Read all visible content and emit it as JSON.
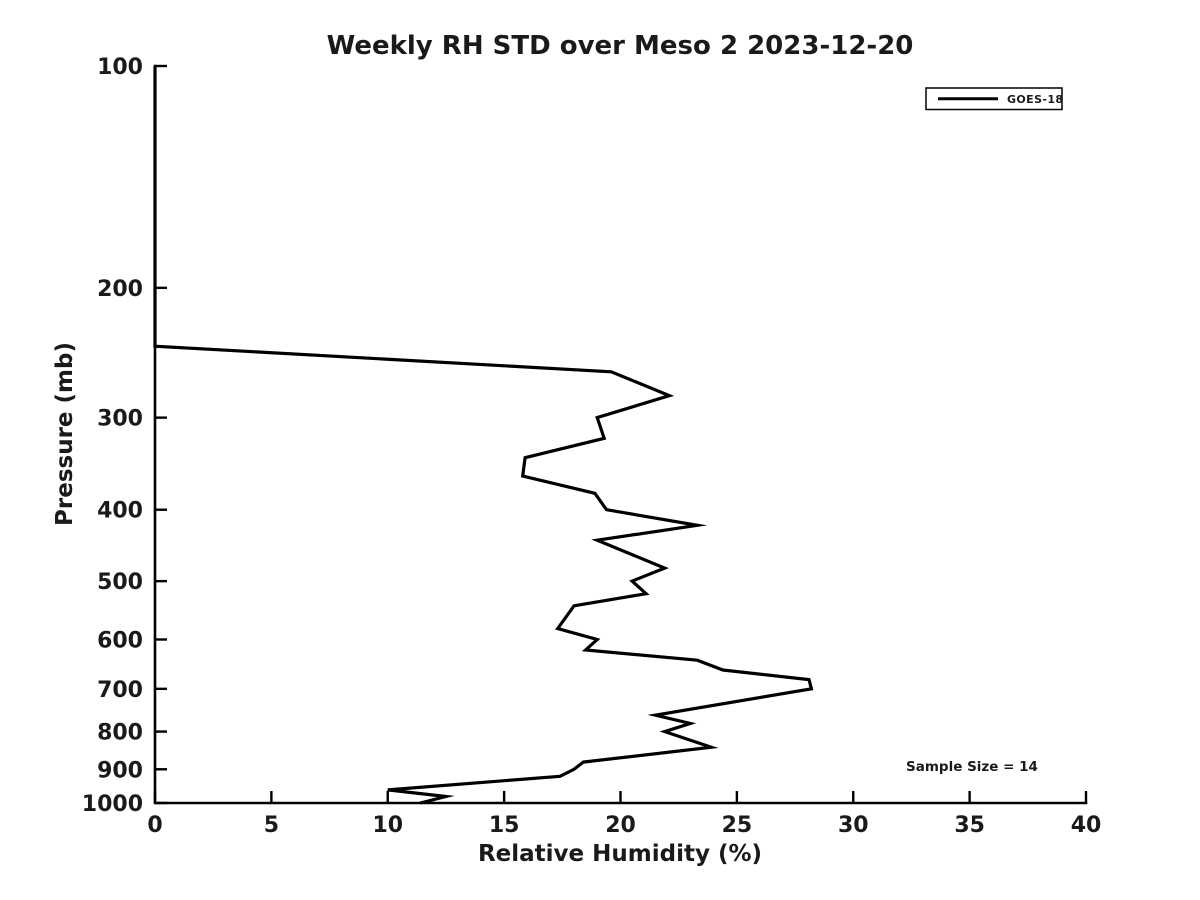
{
  "figure": {
    "background": "#ffffff",
    "foreground": "#000000"
  },
  "chart_data": {
    "type": "line",
    "title": "Weekly RH STD over Meso 2 2023-12-20",
    "xlabel": "Relative Humidity (%)",
    "ylabel": "Pressure (mb)",
    "xlim": [
      0,
      40
    ],
    "ylim": [
      100,
      1000
    ],
    "y_scale": "log",
    "y_axis_direction": "inverted (100 mb at top, 1000 mb at bottom)",
    "x_ticks": [
      0,
      5,
      10,
      15,
      20,
      25,
      30,
      35,
      40
    ],
    "y_ticks": [
      100,
      200,
      300,
      400,
      500,
      600,
      700,
      800,
      900,
      1000
    ],
    "grid": false,
    "legend": {
      "position": "upper-right",
      "border_color": "#000000",
      "background": "#ffffff",
      "entries": [
        {
          "label": "GOES-18",
          "color": "#000000",
          "line_style": "solid"
        }
      ]
    },
    "annotation": {
      "text": "Sample Size = 14"
    },
    "series": [
      {
        "name": "GOES-18",
        "color": "#000000",
        "line_width": 3.2,
        "points_rh_pressure": [
          [
            0.0,
            100
          ],
          [
            0.0,
            240
          ],
          [
            19.6,
            260
          ],
          [
            22.1,
            280
          ],
          [
            19.0,
            300
          ],
          [
            19.3,
            320
          ],
          [
            15.9,
            340
          ],
          [
            15.8,
            360
          ],
          [
            18.9,
            380
          ],
          [
            19.4,
            400
          ],
          [
            23.3,
            420
          ],
          [
            19.0,
            440
          ],
          [
            21.9,
            480
          ],
          [
            20.5,
            500
          ],
          [
            21.1,
            520
          ],
          [
            18.0,
            540
          ],
          [
            17.3,
            580
          ],
          [
            19.0,
            600
          ],
          [
            18.5,
            620
          ],
          [
            23.3,
            640
          ],
          [
            24.4,
            660
          ],
          [
            28.1,
            680
          ],
          [
            28.2,
            700
          ],
          [
            21.5,
            760
          ],
          [
            23.0,
            780
          ],
          [
            21.9,
            800
          ],
          [
            23.9,
            840
          ],
          [
            18.4,
            880
          ],
          [
            18.0,
            900
          ],
          [
            17.4,
            920
          ],
          [
            10.0,
            960
          ],
          [
            12.5,
            980
          ],
          [
            11.4,
            1000
          ]
        ]
      }
    ]
  }
}
